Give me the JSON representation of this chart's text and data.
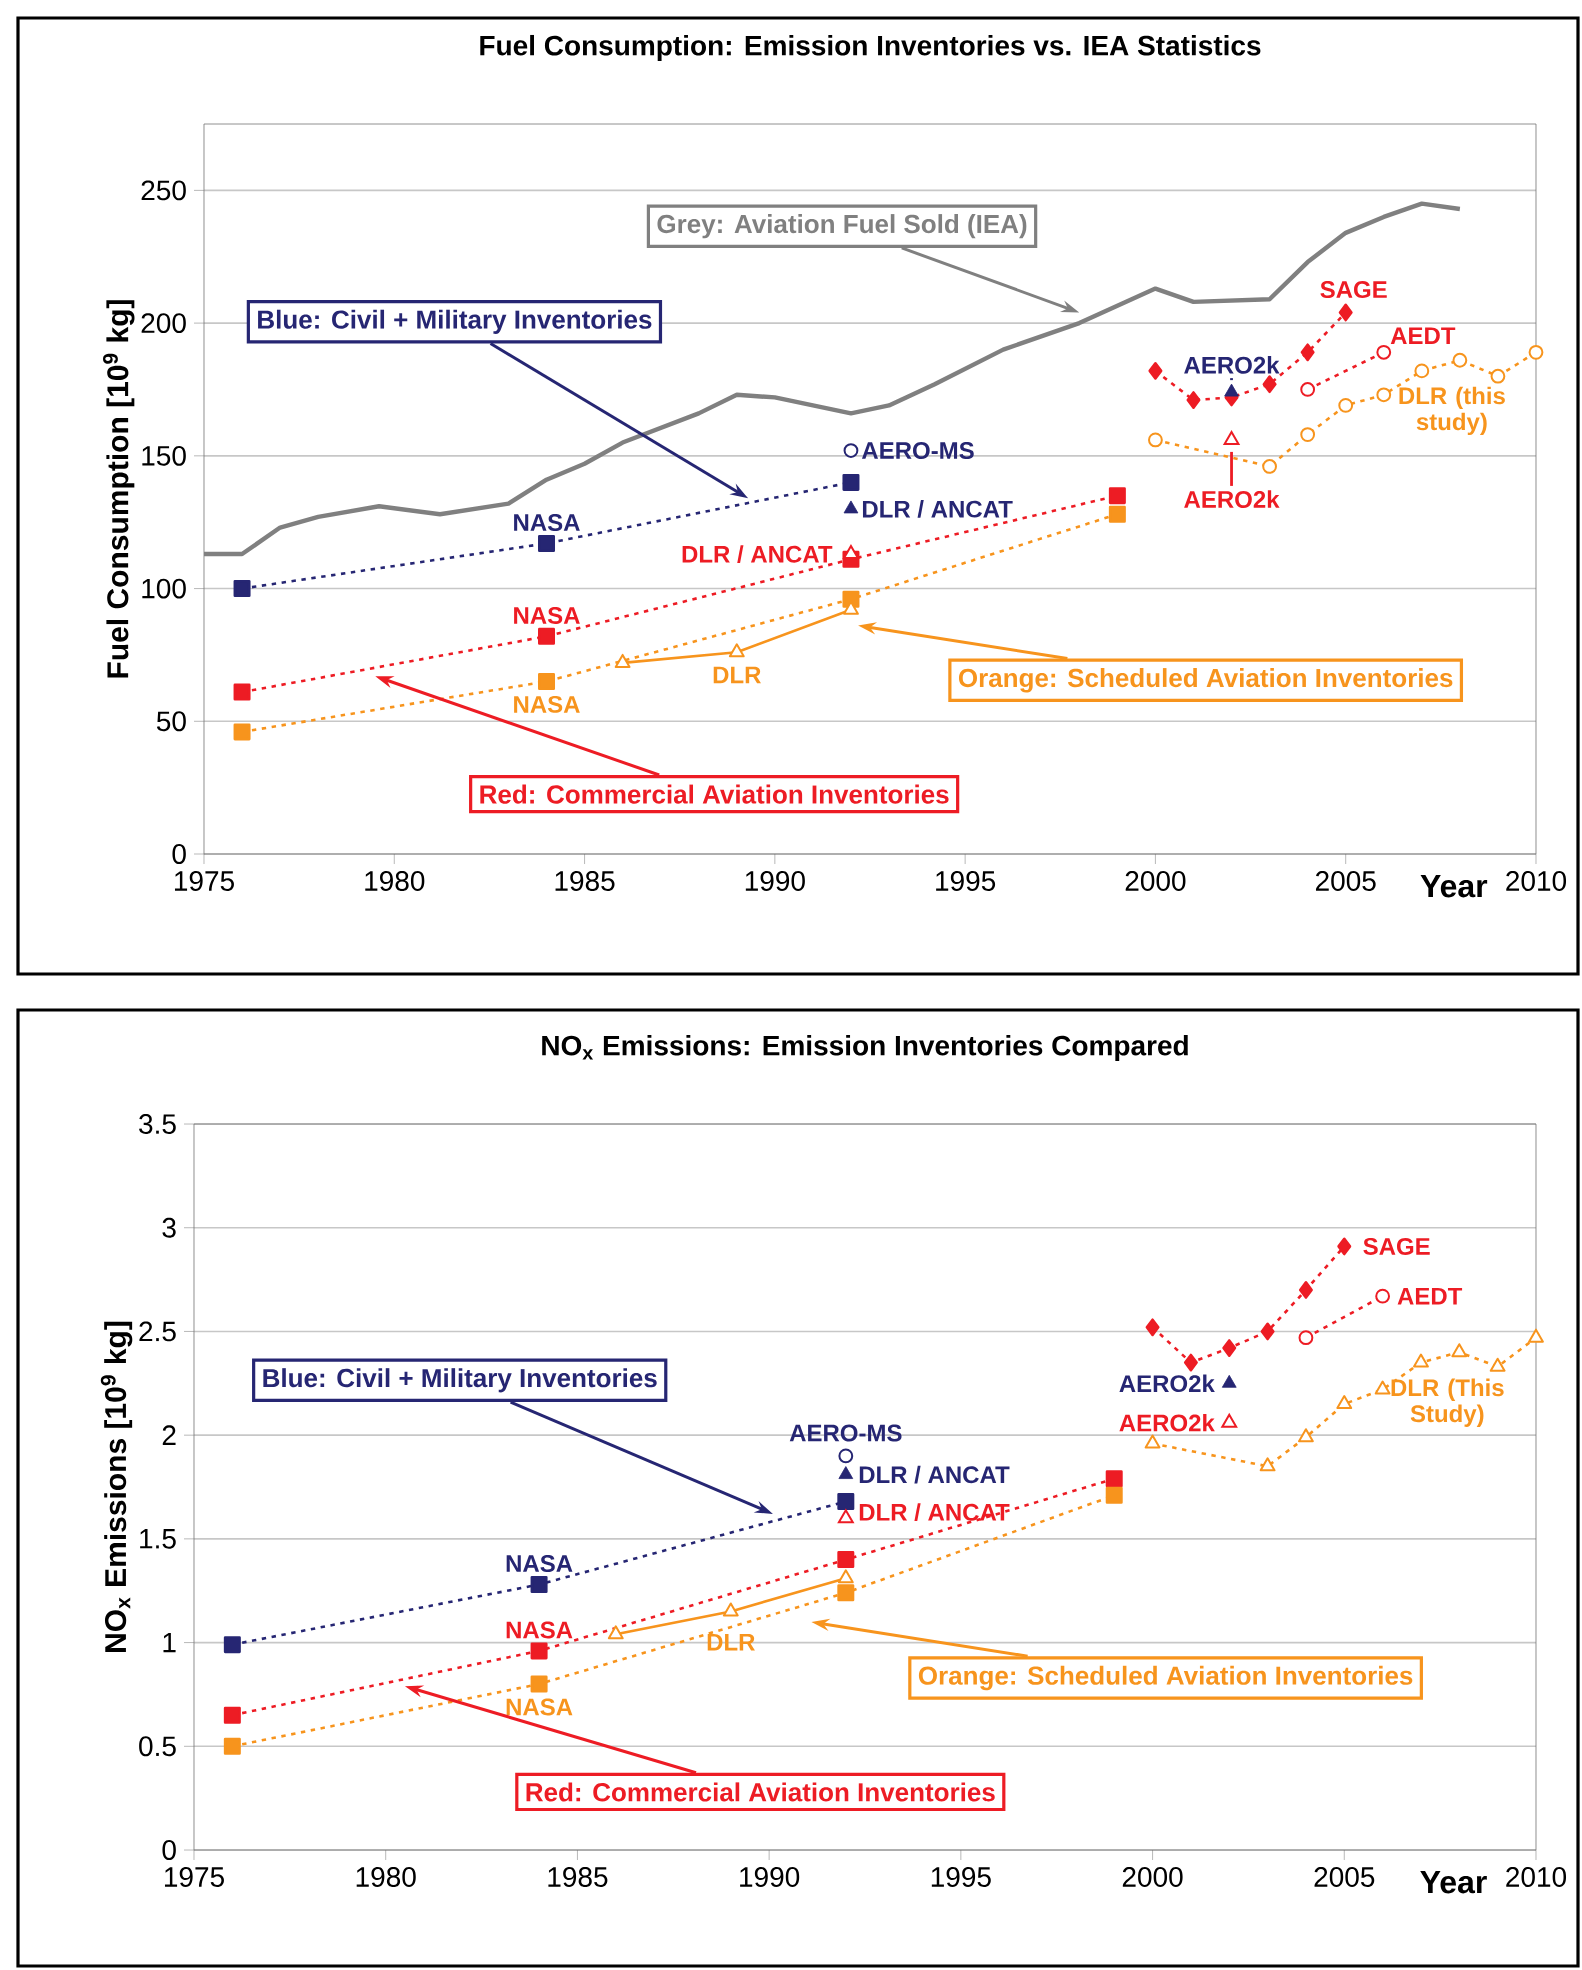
{
  "chart_data": [
    {
      "type": "line",
      "title": "Fuel Consumption: Emission Inventories vs. IEA Statistics",
      "xlabel": "Year",
      "ylabel": "Fuel Consumption [10$^{9}$ kg]",
      "xlim": [
        1975,
        2010
      ],
      "xticks": [
        1975,
        1980,
        1985,
        1990,
        1995,
        2000,
        2005,
        2010
      ],
      "ylim": [
        0,
        275
      ],
      "yticks": [
        0,
        50,
        100,
        150,
        200,
        250
      ],
      "grid": "y",
      "series": [
        {
          "color": "#808080",
          "marker": "none",
          "line_style": "solid",
          "x": [
            1975,
            1976,
            1977,
            1978,
            1979.6,
            1981.2,
            1983,
            1984,
            1985,
            1986,
            1988,
            1989,
            1990,
            1992,
            1993,
            1994.2,
            1996,
            1998,
            2000,
            2001,
            2003,
            2004,
            2005,
            2006,
            2007,
            2008
          ],
          "values": [
            113,
            113,
            123,
            127,
            131,
            128,
            132,
            141,
            147,
            155,
            166,
            173,
            172,
            166,
            169,
            177,
            190,
            200,
            213,
            208,
            209,
            223,
            234,
            240,
            245,
            243
          ]
        },
        {
          "name": "NASA",
          "color": "#262673",
          "marker": "square",
          "line_style": "dotted",
          "x": [
            1976,
            1984,
            1992
          ],
          "values": [
            100,
            117,
            140
          ]
        },
        {
          "type": "scatter",
          "name": "AERO-MS",
          "color": "#262673",
          "marker": "circle",
          "x": [
            1992
          ],
          "values": [
            152
          ]
        },
        {
          "type": "scatter",
          "name": "DLR / ANCAT",
          "color": "#262673",
          "marker": "triangle",
          "x": [
            1992
          ],
          "values": [
            130
          ]
        },
        {
          "type": "scatter",
          "name": "AERO2k",
          "color": "#262673",
          "marker": "triangle",
          "x": [
            2002
          ],
          "values": [
            174
          ]
        },
        {
          "name": "NASA",
          "color": "#ed1c24",
          "marker": "square",
          "line_style": "dotted",
          "x": [
            1976,
            1984,
            1992,
            1999
          ],
          "values": [
            61,
            82,
            111,
            135
          ]
        },
        {
          "type": "scatter",
          "name": "DLR / ANCAT",
          "color": "#ed1c24",
          "marker": "triangle",
          "x": [
            1992
          ],
          "values": [
            113
          ]
        },
        {
          "type": "scatter",
          "name": "AERO2k",
          "color": "#ed1c24",
          "marker": "triangle",
          "x": [
            2002
          ],
          "values": [
            156
          ]
        },
        {
          "name": "SAGE",
          "color": "#ed1c24",
          "marker": "diamond",
          "line_style": "dotted",
          "x": [
            2000,
            2001,
            2002,
            2003,
            2004,
            2005
          ],
          "values": [
            182,
            171,
            172,
            177,
            189,
            204
          ]
        },
        {
          "name": "AEDT",
          "color": "#ed1c24",
          "marker": "circle",
          "line_style": "dotted",
          "x": [
            2004,
            2006
          ],
          "values": [
            175,
            189
          ]
        },
        {
          "name": "NASA",
          "color": "#f7941d",
          "marker": "square",
          "line_style": "dotted",
          "x": [
            1976,
            1984,
            1992,
            1999
          ],
          "values": [
            46,
            65,
            96,
            128
          ]
        },
        {
          "name": "DLR",
          "color": "#f7941d",
          "marker": "triangle",
          "line_style": "solid",
          "x": [
            1986,
            1989,
            1992
          ],
          "values": [
            72,
            76,
            92
          ]
        },
        {
          "name": "DLR (this study)",
          "color": "#f7941d",
          "marker": "circle",
          "line_style": "dotted",
          "x": [
            2000,
            2003,
            2004,
            2005,
            2006,
            2007,
            2008,
            2009,
            2010
          ],
          "values": [
            156,
            146,
            158,
            169,
            173,
            182,
            186,
            180,
            189
          ]
        }
      ],
      "annotations": [
        {
          "text": "Grey: Aviation Fuel Sold (IEA)",
          "x": 1998,
          "y": 204
        },
        {
          "text": "Blue: Civil + Military Inventories",
          "x": 1989.3,
          "y": 134
        },
        {
          "text": "Red: Commercial Aviation Inventories",
          "x": 1979.5,
          "y": 67
        },
        "Orange: Scheduled Aviation Inventories"
      ]
    },
    {
      "type": "line",
      "title": "NO$_{x}$ Emissions: Emission Inventories Compared",
      "xlabel": "Year",
      "ylabel": "NO$_{x}$ Emissions [10$^{9}$ kg]",
      "xlim": [
        1975,
        2010
      ],
      "xticks": [
        1975,
        1980,
        1985,
        1990,
        1995,
        2000,
        2005,
        2010
      ],
      "ylim": [
        0,
        3.5
      ],
      "yticks": [
        0,
        0.5,
        1,
        1.5,
        2,
        2.5,
        3,
        3.5
      ],
      "grid": "y",
      "series": [
        {
          "name": "NASA",
          "color": "#262673",
          "marker": "square",
          "line_style": "dotted",
          "x": [
            1976,
            1984,
            1992
          ],
          "values": [
            0.99,
            1.28,
            1.68
          ]
        },
        {
          "type": "scatter",
          "name": "AERO-MS",
          "color": "#262673",
          "marker": "circle",
          "x": [
            1992
          ],
          "values": [
            1.9
          ]
        },
        {
          "type": "scatter",
          "name": "DLR / ANCAT",
          "color": "#262673",
          "marker": "triangle",
          "x": [
            1992
          ],
          "values": [
            1.81
          ]
        },
        {
          "type": "scatter",
          "name": "AERO2k",
          "color": "#262673",
          "marker": "triangle",
          "x": [
            2002
          ],
          "values": [
            2.25
          ]
        },
        {
          "name": "NASA",
          "color": "#ed1c24",
          "marker": "square",
          "line_style": "dotted",
          "x": [
            1976,
            1984,
            1992,
            1999
          ],
          "values": [
            0.65,
            0.96,
            1.4,
            1.79
          ]
        },
        {
          "type": "scatter",
          "name": "DLR / ANCAT",
          "color": "#ed1c24",
          "marker": "triangle",
          "x": [
            1992
          ],
          "values": [
            1.6
          ]
        },
        {
          "type": "scatter",
          "name": "AERO2k",
          "color": "#ed1c24",
          "marker": "triangle",
          "x": [
            2002
          ],
          "values": [
            2.06
          ]
        },
        {
          "name": "SAGE",
          "color": "#ed1c24",
          "marker": "diamond",
          "line_style": "dotted",
          "x": [
            2000,
            2001,
            2002,
            2003,
            2004,
            2005
          ],
          "values": [
            2.52,
            2.35,
            2.42,
            2.5,
            2.7,
            2.91
          ]
        },
        {
          "name": "AEDT",
          "color": "#ed1c24",
          "marker": "circle",
          "line_style": "dotted",
          "x": [
            2004,
            2006
          ],
          "values": [
            2.47,
            2.67
          ]
        },
        {
          "name": "NASA",
          "color": "#f7941d",
          "marker": "square",
          "line_style": "dotted",
          "x": [
            1976,
            1984,
            1992,
            1999
          ],
          "values": [
            0.5,
            0.8,
            1.24,
            1.71
          ]
        },
        {
          "name": "DLR",
          "color": "#f7941d",
          "marker": "triangle",
          "line_style": "solid",
          "x": [
            1986,
            1989,
            1992
          ],
          "values": [
            1.04,
            1.15,
            1.31
          ]
        },
        {
          "name": "DLR (This Study)",
          "color": "#f7941d",
          "marker": "triangle",
          "line_style": "dotted",
          "x": [
            2000,
            2003,
            2004,
            2005,
            2006,
            2007,
            2008,
            2009,
            2010
          ],
          "values": [
            1.96,
            1.85,
            1.99,
            2.15,
            2.22,
            2.35,
            2.4,
            2.33,
            2.47
          ]
        }
      ],
      "annotations": [
        {
          "text": "Blue: Civil + Military Inventories",
          "x": 1990.1,
          "y": 1.62
        },
        {
          "text": "Red: Commercial Aviation Inventories",
          "x": 1980.5,
          "y": 0.79
        },
        "Orange: Scheduled Aviation Inventories"
      ]
    }
  ]
}
